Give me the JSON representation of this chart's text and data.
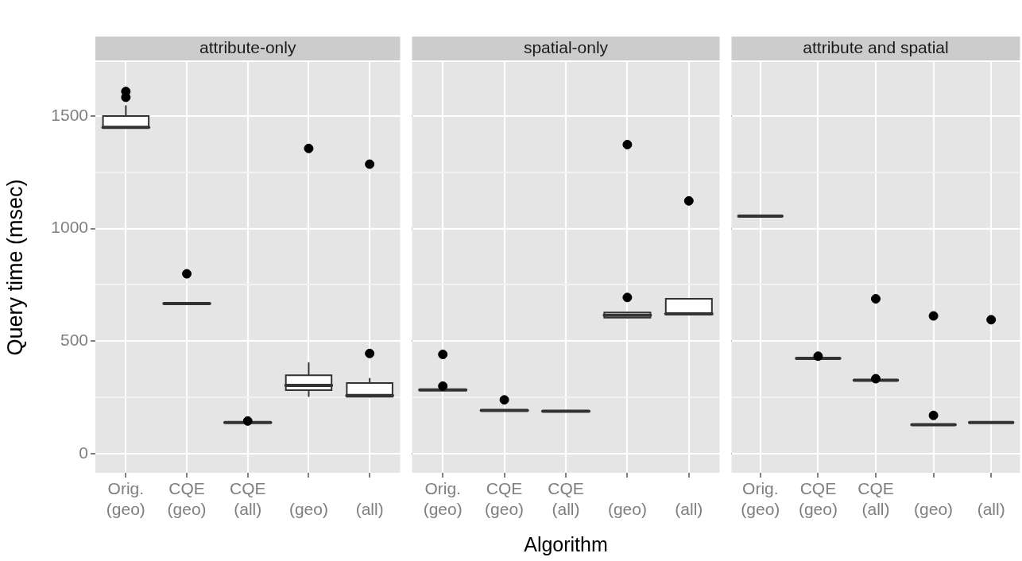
{
  "chart_data": [
    {
      "type": "box",
      "title": "attribute-only",
      "ylabel": "Query time (msec)",
      "categories": [
        "Orig. (geo)",
        "CQE (geo)",
        "CQE (all)",
        "(geo)",
        "(all)"
      ],
      "ylim": [
        -85,
        1740
      ],
      "yticks": [
        0,
        {
          "value": 250,
          "label": null
        },
        500,
        {
          "value": 750,
          "label": null
        },
        1000,
        {
          "value": 1250,
          "label": null
        },
        1500
      ],
      "grid": true,
      "color": "#333333",
      "boxes": [
        {
          "low": 1450,
          "q1": 1450,
          "median": 1450,
          "q3": 1500,
          "high": 1545,
          "outliers": [
            1583,
            1609
          ]
        },
        {
          "low": 667,
          "q1": 667,
          "median": 667,
          "q3": 667,
          "high": 667,
          "outliers": [
            799
          ]
        },
        {
          "low": 138,
          "q1": 138,
          "median": 138,
          "q3": 138,
          "high": 138,
          "outliers": [
            145
          ]
        },
        {
          "low": 256,
          "q1": 282,
          "median": 303,
          "q3": 348,
          "high": 403,
          "outliers": [
            1356
          ]
        },
        {
          "low": 253,
          "q1": 253,
          "median": 258,
          "q3": 314,
          "high": 333,
          "outliers": [
            445,
            1286
          ]
        }
      ]
    },
    {
      "type": "box",
      "title": "spatial-only",
      "xlabel": "Algorithm",
      "categories": [
        "Orig. (geo)",
        "CQE (geo)",
        "CQE (all)",
        "(geo)",
        "(all)"
      ],
      "ylim": [
        -85,
        1740
      ],
      "yticks": [
        0,
        {
          "value": 250,
          "label": null
        },
        500,
        {
          "value": 750,
          "label": null
        },
        1000,
        {
          "value": 1250,
          "label": null
        },
        1500
      ],
      "grid": true,
      "tick_labels": "x",
      "color": "#333333",
      "boxes": [
        {
          "low": 283,
          "q1": 283,
          "median": 283,
          "q3": 283,
          "high": 283,
          "outliers": [
            300,
            441
          ]
        },
        {
          "low": 192,
          "q1": 192,
          "median": 192,
          "q3": 192,
          "high": 192,
          "outliers": [
            239
          ]
        },
        {
          "low": 189,
          "q1": 189,
          "median": 189,
          "q3": 189,
          "high": 189
        },
        {
          "low": 604,
          "q1": 604,
          "median": 615,
          "q3": 627,
          "high": 627,
          "outliers": [
            694,
            1373
          ]
        },
        {
          "low": 621,
          "q1": 621,
          "median": 621,
          "q3": 688,
          "high": 688,
          "outliers": [
            1123
          ]
        }
      ]
    },
    {
      "type": "box",
      "title": "attribute and spatial",
      "categories": [
        "Orig. (geo)",
        "CQE (geo)",
        "CQE (all)",
        "(geo)",
        "(all)"
      ],
      "ylim": [
        -85,
        1740
      ],
      "yticks": [
        0,
        {
          "value": 250,
          "label": null
        },
        500,
        {
          "value": 750,
          "label": null
        },
        1000,
        {
          "value": 1250,
          "label": null
        },
        1500
      ],
      "grid": true,
      "tick_labels": "x",
      "color": "#333333",
      "boxes": [
        {
          "low": 1055,
          "q1": 1055,
          "median": 1055,
          "q3": 1055,
          "high": 1055
        },
        {
          "low": 423,
          "q1": 423,
          "median": 423,
          "q3": 423,
          "high": 423,
          "outliers": [
            433
          ]
        },
        {
          "low": 326,
          "q1": 326,
          "median": 326,
          "q3": 326,
          "high": 326,
          "outliers": [
            333,
            688
          ]
        },
        {
          "low": 129,
          "q1": 129,
          "median": 129,
          "q3": 129,
          "high": 129,
          "outliers": [
            170,
            612
          ]
        },
        {
          "low": 138,
          "q1": 138,
          "median": 138,
          "q3": 138,
          "high": 138,
          "outliers": [
            595
          ]
        }
      ]
    }
  ]
}
